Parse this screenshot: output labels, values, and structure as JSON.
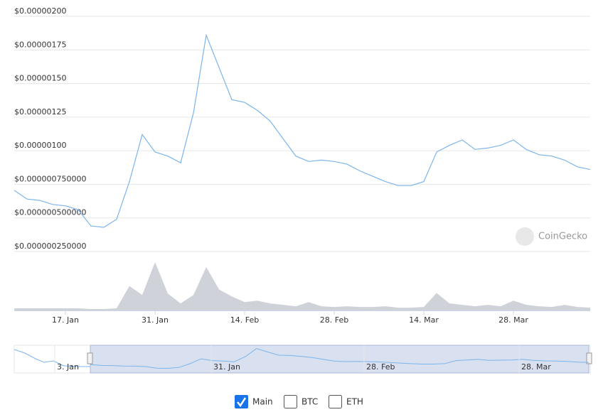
{
  "chart_data": [
    {
      "type": "line",
      "categories": [
        null,
        null,
        null,
        null,
        "17. Jan",
        null,
        null,
        null,
        null,
        null,
        null,
        "31. Jan",
        null,
        null,
        null,
        null,
        null,
        null,
        "14. Feb",
        null,
        null,
        null,
        null,
        null,
        null,
        "28. Feb",
        null,
        null,
        null,
        null,
        null,
        null,
        "14. Mar",
        null,
        null,
        null,
        null,
        null,
        null,
        "28. Mar",
        null,
        null,
        null,
        null,
        null,
        null
      ],
      "ylim": [
        2.5e-07,
        2e-06
      ],
      "yticks": [
        {
          "value": 2.5e-07,
          "label": "$0.000000250000"
        },
        {
          "value": 5e-07,
          "label": "$0.000000500000"
        },
        {
          "value": 7.5e-07,
          "label": "$0.000000750000"
        },
        {
          "value": 1e-06,
          "label": "$0.00000100"
        },
        {
          "value": 1.25e-06,
          "label": "$0.00000125"
        },
        {
          "value": 1.5e-06,
          "label": "$0.00000150"
        },
        {
          "value": 1.75e-06,
          "label": "$0.00000175"
        },
        {
          "value": 2e-06,
          "label": "$0.00000200"
        }
      ],
      "grid": true,
      "series": [
        {
          "color": "#7cb5ec",
          "values": [
            7.05e-07,
            6.4e-07,
            6.3e-07,
            6e-07,
            5.9e-07,
            5.6e-07,
            4.4e-07,
            4.3e-07,
            4.9e-07,
            7.7e-07,
            1.12e-06,
            9.9e-07,
            9.6e-07,
            9.1e-07,
            1.28e-06,
            1.86e-06,
            1.62e-06,
            1.38e-06,
            1.36e-06,
            1.3e-06,
            1.22e-06,
            1.09e-06,
            9.6e-07,
            9.2e-07,
            9.3e-07,
            9.2e-07,
            9e-07,
            8.5e-07,
            8.1e-07,
            7.7e-07,
            7.4e-07,
            7.4e-07,
            7.7e-07,
            9.9e-07,
            1.04e-06,
            1.08e-06,
            1.01e-06,
            1.02e-06,
            1.04e-06,
            1.08e-06,
            1.01e-06,
            9.7e-07,
            9.6e-07,
            9.3e-07,
            8.8e-07,
            8.6e-07
          ]
        }
      ],
      "watermark": "CoinGecko"
    },
    {
      "type": "area",
      "color": "#cfd2d8",
      "ylim": [
        0,
        70
      ],
      "values": [
        3,
        3,
        3,
        3,
        3,
        3,
        2,
        2,
        3,
        35,
        22,
        69,
        24,
        10,
        22,
        62,
        30,
        20,
        12,
        14,
        10,
        8,
        6,
        12,
        6,
        5,
        6,
        5,
        5,
        6,
        4,
        4,
        5,
        25,
        10,
        8,
        6,
        8,
        6,
        14,
        8,
        6,
        5,
        8,
        5,
        4
      ]
    }
  ],
  "navigator": {
    "labels": [
      "3. Jan",
      "31. Jan",
      "28. Feb",
      "28. Mar"
    ]
  },
  "controls": [
    {
      "label": "Main",
      "checked": true
    },
    {
      "label": "BTC",
      "checked": false
    },
    {
      "label": "ETH",
      "checked": false
    }
  ]
}
